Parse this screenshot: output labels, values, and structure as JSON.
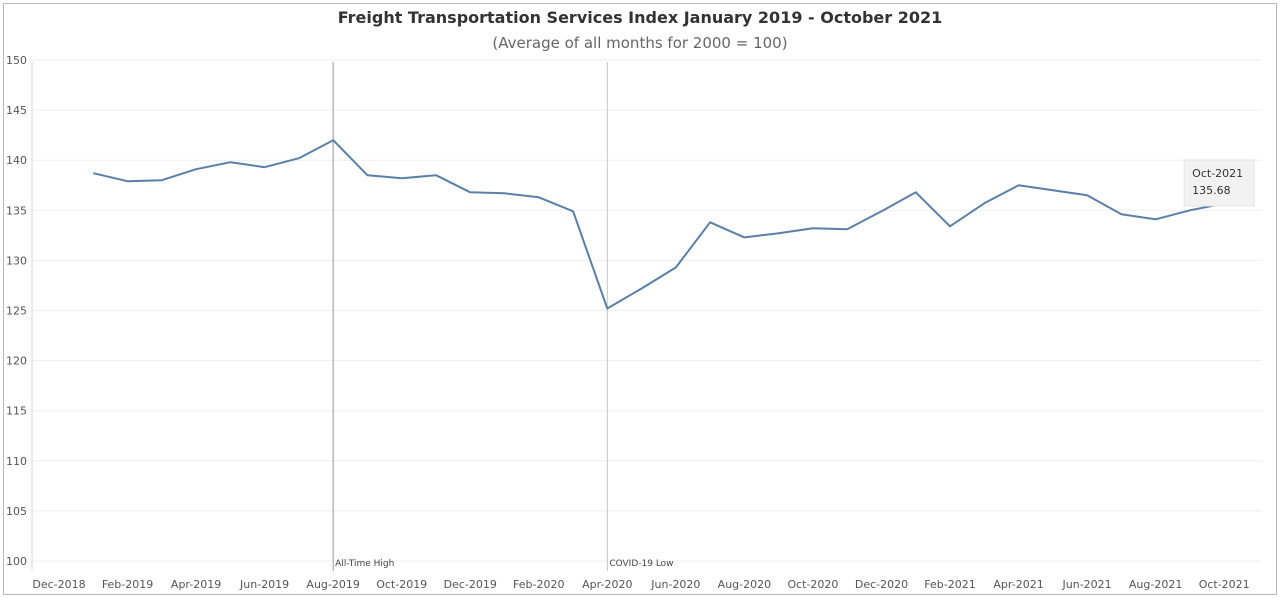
{
  "chart_data": {
    "type": "line",
    "title": "Freight Transportation Services Index January 2019 - October 2021",
    "subtitle": "(Average of all months for 2000 = 100)",
    "xlabel": "",
    "ylabel": "",
    "ylim": [
      100,
      150
    ],
    "yticks": [
      100,
      105,
      110,
      115,
      120,
      125,
      130,
      135,
      140,
      145,
      150
    ],
    "xtick_labels": [
      "Dec-2018",
      "Feb-2019",
      "Apr-2019",
      "Jun-2019",
      "Aug-2019",
      "Oct-2019",
      "Dec-2019",
      "Feb-2020",
      "Apr-2020",
      "Jun-2020",
      "Aug-2020",
      "Oct-2020",
      "Dec-2020",
      "Feb-2021",
      "Apr-2021",
      "Jun-2021",
      "Aug-2021",
      "Oct-2021"
    ],
    "grid": true,
    "line_color": "#5b7fa6",
    "series": [
      {
        "x": [
          "Jan-2019",
          "Feb-2019",
          "Mar-2019",
          "Apr-2019",
          "May-2019",
          "Jun-2019",
          "Jul-2019",
          "Aug-2019",
          "Sep-2019",
          "Oct-2019",
          "Nov-2019",
          "Dec-2019",
          "Jan-2020",
          "Feb-2020",
          "Mar-2020",
          "Apr-2020",
          "May-2020",
          "Jun-2020",
          "Jul-2020",
          "Aug-2020",
          "Sep-2020",
          "Oct-2020",
          "Nov-2020",
          "Dec-2020",
          "Jan-2021",
          "Feb-2021",
          "Mar-2021",
          "Apr-2021",
          "May-2021",
          "Jun-2021",
          "Jul-2021",
          "Aug-2021",
          "Sep-2021",
          "Oct-2021"
        ],
        "values": [
          138.7,
          137.9,
          138.0,
          139.1,
          139.8,
          139.3,
          140.2,
          142.0,
          138.5,
          138.2,
          138.5,
          136.8,
          136.7,
          136.3,
          134.9,
          125.2,
          127.2,
          129.3,
          133.8,
          132.3,
          132.7,
          133.2,
          133.1,
          134.9,
          136.8,
          133.4,
          135.7,
          137.5,
          137.0,
          136.5,
          134.6,
          134.1,
          135.0,
          135.68
        ]
      }
    ],
    "reference_lines": [
      {
        "x": "Aug-2019",
        "label": "All-Time High"
      },
      {
        "x": "Apr-2020",
        "label": "COVID-19 Low"
      }
    ],
    "annotation": {
      "x": "Oct-2021",
      "label": "Oct-2021",
      "value": "135.68"
    }
  }
}
